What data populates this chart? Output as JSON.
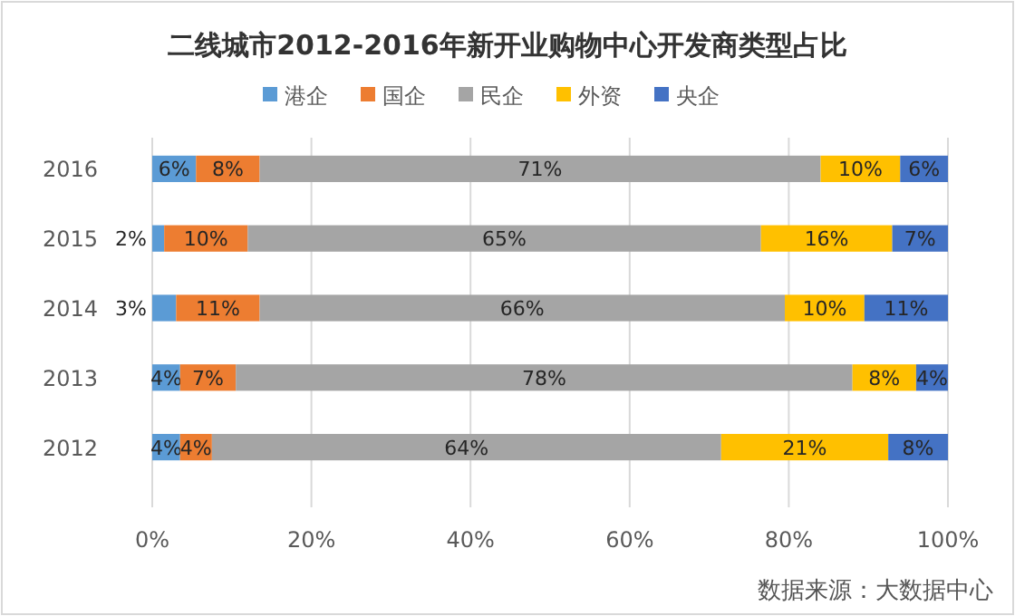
{
  "chart_data": {
    "type": "bar",
    "orientation": "horizontal",
    "stacked": true,
    "title": "二线城市2012-2016年新开业购物中心开发商类型占比",
    "categories": [
      "2016",
      "2015",
      "2014",
      "2013",
      "2012"
    ],
    "series": [
      {
        "name": "港企",
        "color": "#5b9bd5",
        "values": [
          5.5,
          1.5,
          3,
          3.5,
          3.5
        ],
        "value_labels": [
          "6%",
          "2%",
          "3%",
          "4%",
          "4%"
        ]
      },
      {
        "name": "国企",
        "color": "#ed7d31",
        "values": [
          8,
          10.5,
          10.5,
          7,
          4
        ],
        "value_labels": [
          "8%",
          "10%",
          "11%",
          "7%",
          "4%"
        ]
      },
      {
        "name": "民企",
        "color": "#a5a5a5",
        "values": [
          70.5,
          64.5,
          66,
          77.5,
          64
        ],
        "value_labels": [
          "71%",
          "65%",
          "66%",
          "78%",
          "64%"
        ]
      },
      {
        "name": "外资",
        "color": "#ffc000",
        "values": [
          10,
          16.5,
          10,
          8,
          21
        ],
        "value_labels": [
          "10%",
          "16%",
          "10%",
          "8%",
          "21%"
        ]
      },
      {
        "name": "央企",
        "color": "#4472c4",
        "values": [
          6,
          7,
          10.5,
          4,
          7.5
        ],
        "value_labels": [
          "6%",
          "7%",
          "11%",
          "4%",
          "8%"
        ]
      }
    ],
    "xlim": [
      0,
      100
    ],
    "xticks": [
      {
        "value": 0,
        "label": "0%"
      },
      {
        "value": 20,
        "label": "20%"
      },
      {
        "value": 40,
        "label": "40%"
      },
      {
        "value": 60,
        "label": "60%"
      },
      {
        "value": 80,
        "label": "80%"
      },
      {
        "value": 100,
        "label": "100%"
      }
    ],
    "grid": "x",
    "legend": "top",
    "annotations": [
      "数据来源：大数据中心"
    ]
  }
}
